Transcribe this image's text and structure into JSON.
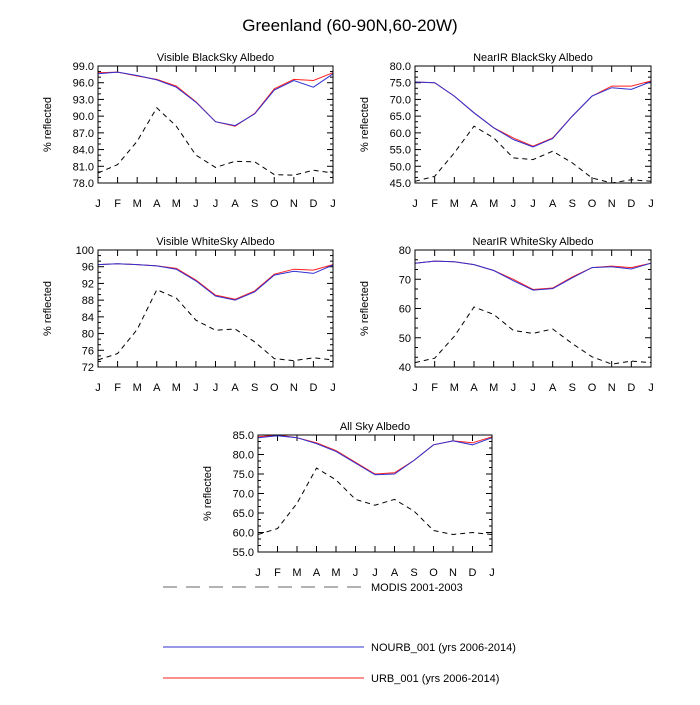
{
  "title": "Greenland (60-90N,60-20W)",
  "colors": {
    "modis": "#000000",
    "nourb": "#3030d0",
    "urb": "#ff2020",
    "legend_dash": "#999999"
  },
  "legend": [
    {
      "key": "modis",
      "label": "MODIS 2001-2003",
      "style": "dashed"
    },
    {
      "key": "nourb",
      "label": "NOURB_001 (yrs 2006-2014)",
      "style": "solid"
    },
    {
      "key": "urb",
      "label": "URB_001 (yrs 2006-2014)",
      "style": "solid"
    }
  ],
  "chart_data": [
    {
      "type": "line",
      "title": "Visible BlackSky Albedo",
      "ylabel": "% reflected",
      "categories": [
        "J",
        "F",
        "M",
        "A",
        "M",
        "J",
        "J",
        "A",
        "S",
        "O",
        "N",
        "D",
        "J"
      ],
      "ylim": [
        78.0,
        99.0
      ],
      "yticks": [
        "78.0",
        "81.0",
        "84.0",
        "87.0",
        "90.0",
        "93.0",
        "96.0",
        "99.0"
      ],
      "series": [
        {
          "key": "modis",
          "name": "MODIS 2001-2003",
          "values": [
            79.8,
            81.3,
            85.5,
            91.5,
            88.2,
            83.0,
            80.8,
            81.9,
            81.8,
            79.5,
            79.4,
            80.3,
            79.8
          ]
        },
        {
          "key": "urb",
          "name": "URB_001 (yrs 2006-2014)",
          "values": [
            97.8,
            97.9,
            97.2,
            96.6,
            95.4,
            92.6,
            89.0,
            88.2,
            90.5,
            94.9,
            96.6,
            96.4,
            97.8
          ]
        },
        {
          "key": "nourb",
          "name": "NOURB_001 (yrs 2006-2014)",
          "values": [
            97.6,
            97.9,
            97.3,
            96.5,
            95.2,
            92.5,
            89.0,
            88.3,
            90.4,
            94.7,
            96.4,
            95.2,
            97.6
          ]
        }
      ]
    },
    {
      "type": "line",
      "title": "NearIR BlackSky Albedo",
      "ylabel": "% reflected",
      "categories": [
        "J",
        "F",
        "M",
        "A",
        "M",
        "J",
        "J",
        "A",
        "S",
        "O",
        "N",
        "D",
        "J"
      ],
      "ylim": [
        45.0,
        80.0
      ],
      "yticks": [
        "45.0",
        "50.0",
        "55.0",
        "60.0",
        "65.0",
        "70.0",
        "75.0",
        "80.0"
      ],
      "series": [
        {
          "key": "modis",
          "name": "MODIS 2001-2003",
          "values": [
            45.5,
            47.0,
            54.0,
            62.0,
            58.5,
            52.5,
            52.0,
            54.5,
            51.0,
            46.5,
            45.0,
            46.0,
            45.5
          ]
        },
        {
          "key": "urb",
          "name": "URB_001 (yrs 2006-2014)",
          "values": [
            75.2,
            75.0,
            71.0,
            66.0,
            61.5,
            58.5,
            56.0,
            58.5,
            65.0,
            71.0,
            74.0,
            74.0,
            75.5
          ]
        },
        {
          "key": "nourb",
          "name": "NOURB_001 (yrs 2006-2014)",
          "values": [
            75.2,
            75.0,
            71.0,
            66.0,
            61.5,
            58.0,
            55.8,
            58.3,
            65.0,
            71.0,
            73.5,
            73.0,
            75.3
          ]
        }
      ]
    },
    {
      "type": "line",
      "title": "Visible WhiteSky Albedo",
      "ylabel": "% reflected",
      "categories": [
        "J",
        "F",
        "M",
        "A",
        "M",
        "J",
        "J",
        "A",
        "S",
        "O",
        "N",
        "D",
        "J"
      ],
      "ylim": [
        72,
        100
      ],
      "yticks": [
        "72",
        "76",
        "80",
        "84",
        "88",
        "92",
        "96",
        "100"
      ],
      "series": [
        {
          "key": "modis",
          "name": "MODIS 2001-2003",
          "values": [
            73.7,
            75.2,
            81.0,
            90.5,
            88.5,
            83.2,
            80.8,
            81.1,
            78.0,
            74.0,
            73.5,
            74.2,
            73.7
          ]
        },
        {
          "key": "urb",
          "name": "URB_001 (yrs 2006-2014)",
          "values": [
            96.5,
            96.7,
            96.5,
            96.2,
            95.6,
            92.8,
            89.2,
            88.2,
            90.2,
            94.2,
            95.4,
            95.2,
            96.5
          ]
        },
        {
          "key": "nourb",
          "name": "NOURB_001 (yrs 2006-2014)",
          "values": [
            96.5,
            96.7,
            96.5,
            96.2,
            95.4,
            92.6,
            89.0,
            88.0,
            90.0,
            94.0,
            94.9,
            94.4,
            96.4
          ]
        }
      ]
    },
    {
      "type": "line",
      "title": "NearIR WhiteSky Albedo",
      "ylabel": "% reflected",
      "categories": [
        "J",
        "F",
        "M",
        "A",
        "M",
        "J",
        "J",
        "A",
        "S",
        "O",
        "N",
        "D",
        "J"
      ],
      "ylim": [
        40,
        80
      ],
      "yticks": [
        "40",
        "50",
        "60",
        "70",
        "80"
      ],
      "series": [
        {
          "key": "modis",
          "name": "MODIS 2001-2003",
          "values": [
            41.5,
            43.0,
            50.5,
            60.5,
            58.0,
            52.5,
            51.5,
            53.0,
            48.0,
            43.5,
            41.0,
            42.0,
            41.5
          ]
        },
        {
          "key": "urb",
          "name": "URB_001 (yrs 2006-2014)",
          "values": [
            75.5,
            76.2,
            76.0,
            75.0,
            73.0,
            70.0,
            66.5,
            67.0,
            70.8,
            74.0,
            74.5,
            74.0,
            75.5
          ]
        },
        {
          "key": "nourb",
          "name": "NOURB_001 (yrs 2006-2014)",
          "values": [
            75.5,
            76.2,
            76.0,
            75.0,
            73.0,
            69.5,
            66.3,
            66.8,
            70.5,
            74.0,
            74.3,
            73.5,
            75.5
          ]
        }
      ]
    },
    {
      "type": "line",
      "title": "All Sky Albedo",
      "ylabel": "% reflected",
      "categories": [
        "J",
        "F",
        "M",
        "A",
        "M",
        "J",
        "J",
        "A",
        "S",
        "O",
        "N",
        "D",
        "J"
      ],
      "ylim": [
        55.0,
        85.0
      ],
      "yticks": [
        "55.0",
        "60.0",
        "65.0",
        "70.0",
        "75.0",
        "80.0",
        "85.0"
      ],
      "series": [
        {
          "key": "modis",
          "name": "MODIS 2001-2003",
          "values": [
            59.5,
            61.0,
            67.5,
            76.5,
            73.5,
            68.5,
            67.0,
            68.5,
            65.5,
            60.5,
            59.5,
            60.0,
            59.5
          ]
        },
        {
          "key": "urb",
          "name": "URB_001 (yrs 2006-2014)",
          "values": [
            84.5,
            85.0,
            84.3,
            83.0,
            81.0,
            78.0,
            75.0,
            75.3,
            78.5,
            82.5,
            83.5,
            83.0,
            84.5
          ]
        },
        {
          "key": "nourb",
          "name": "NOURB_001 (yrs 2006-2014)",
          "values": [
            84.3,
            84.8,
            84.3,
            82.8,
            80.8,
            77.8,
            74.8,
            75.0,
            78.5,
            82.5,
            83.5,
            82.5,
            84.3
          ]
        }
      ]
    }
  ]
}
